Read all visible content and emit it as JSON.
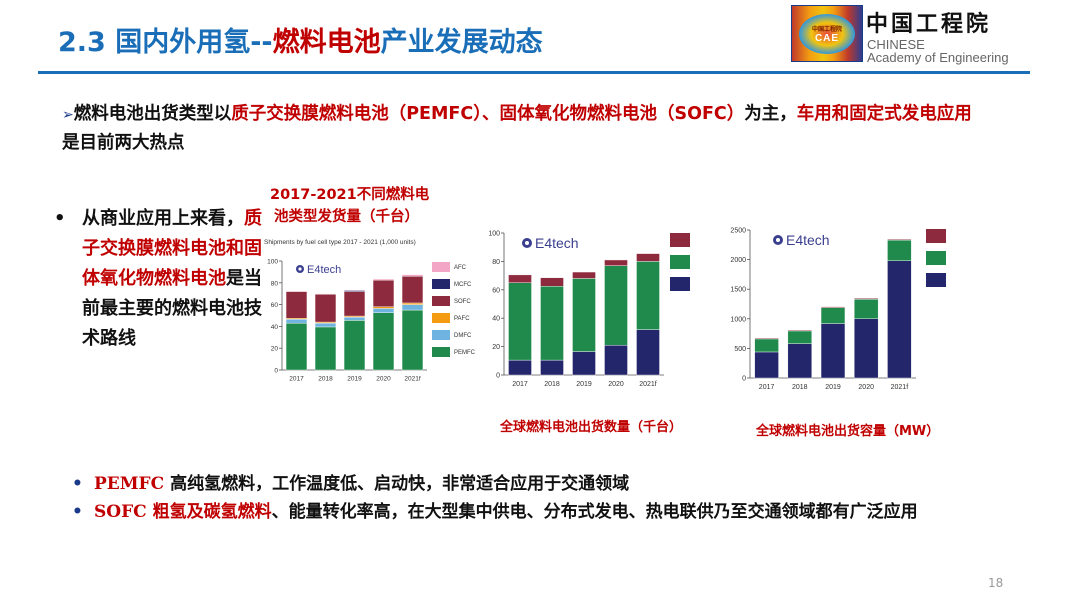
{
  "header": {
    "title_prefix": "2.3 国内外用氢--",
    "title_red": "燃料电池",
    "title_suffix": "产业发展动态",
    "logo": {
      "badge_cn": "中国工程院",
      "badge_en": "CAE"
    },
    "org_cn": "中国工程院",
    "org_en_line1": "CHINESE",
    "org_en_line2": "Academy of Engineering"
  },
  "lead": {
    "arrow": "➢",
    "segments": [
      {
        "text": "燃料电池出货类型以",
        "red": false
      },
      {
        "text": "质子交换膜燃料电池（PEMFC）、固体氧化物燃料电池（SOFC）",
        "red": true
      },
      {
        "text": "为主，",
        "red": false
      },
      {
        "text": "车用和固定式发电应用",
        "red": true
      },
      {
        "text": "是目前两大热点",
        "red": false
      }
    ]
  },
  "side_note": {
    "bullet": "•",
    "part1": "从商业应用上来看，",
    "part2_red": "质子交换膜燃料电池和固体氧化物燃料电池",
    "part3": "是当前最主要的燃料电池技术路线"
  },
  "chart1_heading": {
    "line1": "2017-2021不同燃料电",
    "line2": "池类型发货量（千台）"
  },
  "captions": {
    "chart2": "全球燃料电池出货数量（千台）",
    "chart3": "全球燃料电池出货容量（MW）"
  },
  "bullets": [
    {
      "dot": "•",
      "label": "PEMFC",
      "red_part": "",
      "text": " 高纯氢燃料，工作温度低、启动快，非常适合应用于交通领域"
    },
    {
      "dot": "•",
      "label": "SOFC",
      "red_part": " 粗氢及碳氢燃料",
      "text": "、能量转化率高，在大型集中供电、分布式发电、热电联供乃至交通领域都有广泛应用"
    }
  ],
  "page_number": "18",
  "colors": {
    "title_blue": "#1a6eb8",
    "accent_red": "#c00000",
    "pemfc_green": "#1f8a4c",
    "dmfc_blue": "#6fb3e0",
    "pafc_orange": "#f39c12",
    "sofc_maroon": "#8e2a3e",
    "mcfc_navy": "#24266b",
    "afc_pink": "#f4a6c6"
  },
  "chart_data": [
    {
      "type": "bar",
      "stacked": true,
      "title": "Shipments by fuel cell type 2017 - 2021 (1,000 units)",
      "brand": "E4tech",
      "categories": [
        "2017",
        "2018",
        "2019",
        "2020",
        "2021f"
      ],
      "ylim": [
        0,
        100
      ],
      "yticks": [
        0,
        20,
        40,
        60,
        80,
        100
      ],
      "legend_position": "right",
      "series": [
        {
          "name": "PEMFC",
          "color": "#1f8a4c",
          "values": [
            43,
            39.5,
            45.5,
            52.5,
            55
          ]
        },
        {
          "name": "DMFC",
          "color": "#6fb3e0",
          "values": [
            3.5,
            3.5,
            3,
            4,
            5
          ]
        },
        {
          "name": "PAFC",
          "color": "#f39c12",
          "values": [
            1,
            1,
            1,
            1.5,
            1.5
          ]
        },
        {
          "name": "SOFC",
          "color": "#8e2a3e",
          "values": [
            24.5,
            25.5,
            22.5,
            24.5,
            24.5
          ]
        },
        {
          "name": "MCFC",
          "color": "#24266b",
          "values": [
            0,
            0,
            1,
            0,
            0
          ]
        },
        {
          "name": "AFC",
          "color": "#f4a6c6",
          "values": [
            0.5,
            0.5,
            0.5,
            1,
            1.5
          ]
        }
      ]
    },
    {
      "type": "bar",
      "stacked": true,
      "title": "全球燃料电池出货数量（千台）",
      "brand": "E4tech",
      "categories": [
        "2017",
        "2018",
        "2019",
        "2020",
        "2021f"
      ],
      "ylim": [
        0,
        100
      ],
      "yticks": [
        0,
        20,
        40,
        60,
        80,
        100
      ],
      "legend_position": "right",
      "series": [
        {
          "name": "series-navy",
          "color": "#24266b",
          "values": [
            10.5,
            10.5,
            16.5,
            21,
            32
          ]
        },
        {
          "name": "series-green",
          "color": "#1f8a4c",
          "values": [
            54.5,
            52,
            51.5,
            56,
            48
          ]
        },
        {
          "name": "series-maroon",
          "color": "#8e2a3e",
          "values": [
            5.5,
            6,
            4.5,
            4,
            5.5
          ]
        }
      ]
    },
    {
      "type": "bar",
      "stacked": true,
      "title": "全球燃料电池出货容量（MW）",
      "brand": "E4tech",
      "categories": [
        "2017",
        "2018",
        "2019",
        "2020",
        "2021f"
      ],
      "ylim": [
        0,
        2500
      ],
      "yticks": [
        0,
        500,
        1000,
        1500,
        2000,
        2500
      ],
      "legend_position": "right",
      "series": [
        {
          "name": "series-navy",
          "color": "#24266b",
          "values": [
            440,
            580,
            920,
            1000,
            1980
          ]
        },
        {
          "name": "series-green",
          "color": "#1f8a4c",
          "values": [
            220,
            215,
            270,
            330,
            350
          ]
        },
        {
          "name": "series-maroon",
          "color": "#8e2a3e",
          "values": [
            15,
            15,
            15,
            15,
            15
          ]
        }
      ]
    }
  ]
}
